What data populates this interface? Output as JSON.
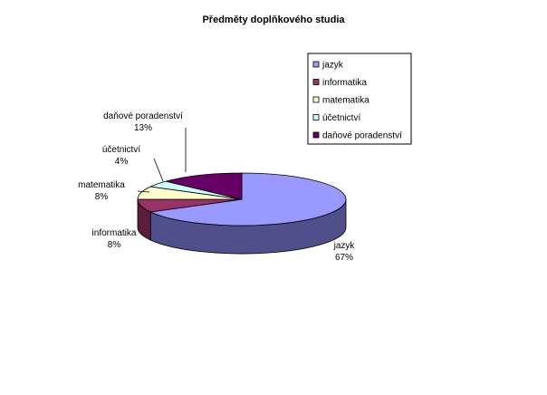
{
  "chart_data": {
    "type": "pie",
    "style": "3d-pie",
    "title": "Předměty doplňkového studia",
    "legend_position": "top-right",
    "slices": [
      {
        "label": "jazyk",
        "value": 67,
        "display": "67%",
        "color": "#9999ff",
        "side_color": "#4f4f8c"
      },
      {
        "label": "informatika",
        "value": 8,
        "display": "8%",
        "color": "#993366",
        "side_color": "#5a1e3b"
      },
      {
        "label": "matematika",
        "value": 8,
        "display": "8%",
        "color": "#ffffcc",
        "side_color": "#9a9a7a"
      },
      {
        "label": "účetnictví",
        "value": 4,
        "display": "4%",
        "color": "#ccffff",
        "side_color": "#7a9a9a"
      },
      {
        "label": "daňové poradenství",
        "value": 13,
        "display": "13%",
        "color": "#660066",
        "side_color": "#330033"
      }
    ]
  }
}
